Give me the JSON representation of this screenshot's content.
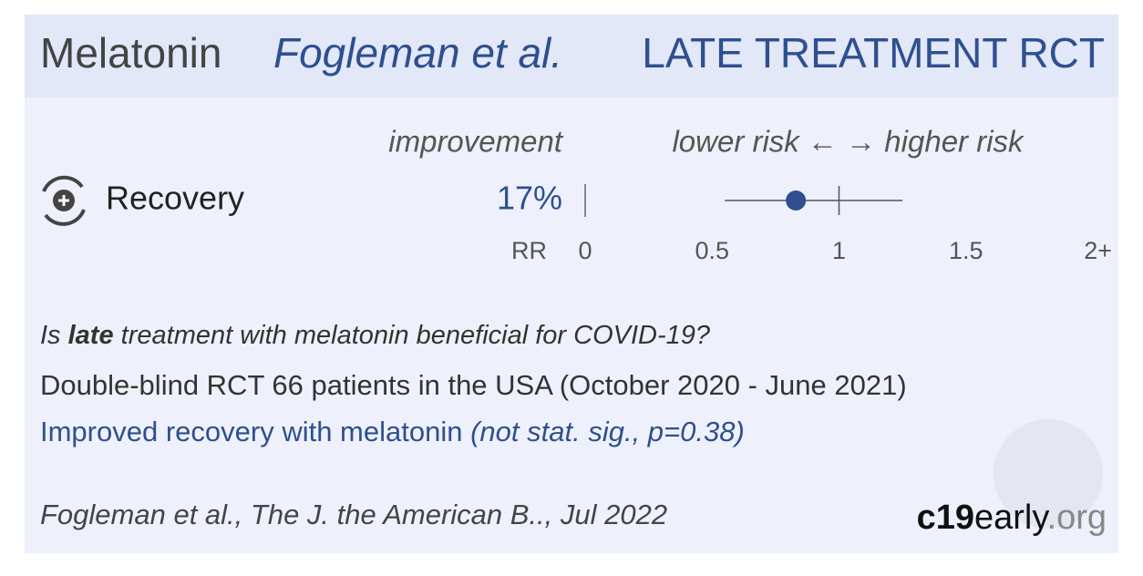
{
  "header": {
    "drug": "Melatonin",
    "study": "Fogleman et al.",
    "stage": "LATE TREATMENT RCT"
  },
  "chart_data": {
    "type": "forest",
    "column_label": "improvement",
    "direction_label": "lower risk ← → higher risk",
    "categories": [
      "Recovery"
    ],
    "improvement_labels": [
      "17%"
    ],
    "values": [
      0.83
    ],
    "ci_low": [
      0.55
    ],
    "ci_high": [
      1.25
    ],
    "xlabel": "RR",
    "xlim": [
      0,
      2
    ],
    "xticks": [
      0,
      0.5,
      1,
      1.5,
      {
        "value": 2,
        "label": "2+"
      }
    ],
    "color": "#2f4f8f"
  },
  "question": {
    "before": "Is",
    "emphasis": "late",
    "after": "treatment with melatonin beneficial for COVID-19?"
  },
  "design": "Double-blind RCT 66 patients in the USA (October 2020 - June 2021)",
  "result": {
    "text": "Improved recovery with melatonin",
    "note": "(not stat. sig., p=0.38)"
  },
  "citation": "Fogleman et al., The J. the American B.., Jul 2022",
  "brand": {
    "name": "c19",
    "middle": "early",
    "tld": ".org"
  }
}
